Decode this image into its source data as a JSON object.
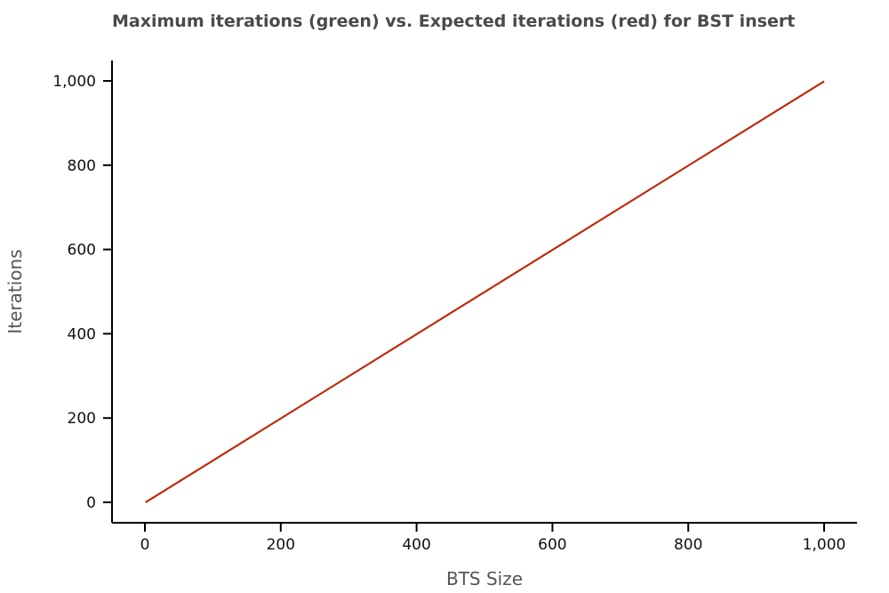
{
  "chart_data": {
    "type": "line",
    "title": "Maximum iterations (green) vs. Expected iterations (red) for BST insert",
    "xlabel": "BTS Size",
    "ylabel": "Iterations",
    "xlim": [
      0,
      1000
    ],
    "ylim": [
      0,
      1000
    ],
    "xticks": [
      0,
      200,
      400,
      600,
      800,
      1000
    ],
    "xtick_labels": [
      "0",
      "200",
      "400",
      "600",
      "800",
      "1,000"
    ],
    "yticks": [
      0,
      200,
      400,
      600,
      800,
      1000
    ],
    "ytick_labels": [
      "0",
      "200",
      "400",
      "600",
      "800",
      "1,000"
    ],
    "grid": false,
    "series": [
      {
        "color": "#2e8b57",
        "x": [
          1,
          1000
        ],
        "y": [
          0,
          999
        ]
      },
      {
        "color": "#cc2200",
        "x": [
          1,
          1000
        ],
        "y": [
          0,
          999
        ]
      }
    ]
  }
}
